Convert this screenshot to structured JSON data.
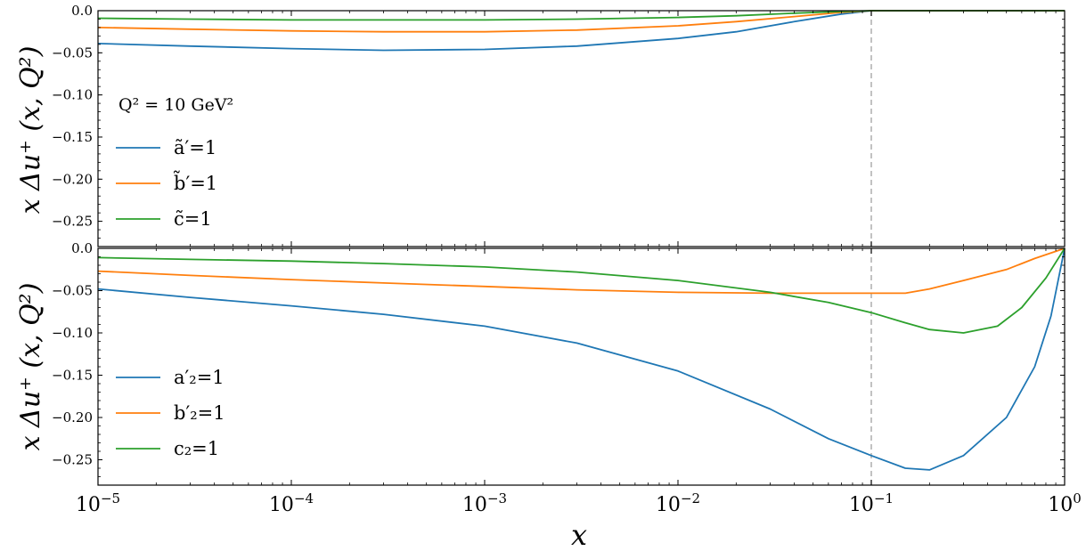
{
  "chart_data": [
    {
      "type": "line",
      "panel": "top",
      "annotation": "Q² = 10 GeV²",
      "ylabel": "x Δu⁺ (x, Q²)",
      "xscale": "log",
      "xlim": [
        1e-05,
        1
      ],
      "ylim": [
        -0.28,
        0.0
      ],
      "yticks": [
        "0.0",
        "−0.05",
        "−0.10",
        "−0.15",
        "−0.20",
        "−0.25"
      ],
      "ytick_values": [
        0.0,
        -0.05,
        -0.1,
        -0.15,
        -0.2,
        -0.25
      ],
      "vline_x": 0.1,
      "legend_position": "center-left",
      "series": [
        {
          "name": "ã′=1",
          "color": "#1f77b4",
          "x": [
            1e-05,
            3e-05,
            0.0001,
            0.0003,
            0.001,
            0.003,
            0.01,
            0.02,
            0.04,
            0.07,
            0.1,
            0.3,
            1.0
          ],
          "y": [
            -0.039,
            -0.042,
            -0.045,
            -0.047,
            -0.046,
            -0.042,
            -0.033,
            -0.025,
            -0.013,
            -0.004,
            0.0,
            0.0,
            0.0
          ]
        },
        {
          "name": "b̃′=1",
          "color": "#ff7f0e",
          "x": [
            1e-05,
            3e-05,
            0.0001,
            0.0003,
            0.001,
            0.003,
            0.01,
            0.02,
            0.04,
            0.07,
            0.1,
            0.3,
            1.0
          ],
          "y": [
            -0.02,
            -0.022,
            -0.024,
            -0.025,
            -0.025,
            -0.023,
            -0.018,
            -0.013,
            -0.007,
            -0.002,
            0.0,
            0.0,
            0.0
          ]
        },
        {
          "name": "c̃=1",
          "color": "#2ca02c",
          "x": [
            1e-05,
            3e-05,
            0.0001,
            0.0003,
            0.001,
            0.003,
            0.01,
            0.02,
            0.04,
            0.07,
            0.1,
            0.3,
            1.0
          ],
          "y": [
            -0.009,
            -0.01,
            -0.011,
            -0.011,
            -0.011,
            -0.01,
            -0.008,
            -0.006,
            -0.003,
            -0.001,
            0.0,
            0.0,
            0.0
          ]
        }
      ]
    },
    {
      "type": "line",
      "panel": "bottom",
      "ylabel": "x Δu⁺ (x, Q²)",
      "xlabel": "x",
      "xscale": "log",
      "xlim": [
        1e-05,
        1
      ],
      "ylim": [
        -0.28,
        0.0
      ],
      "xticks": [
        "10",
        "10",
        "10",
        "10",
        "10",
        "10"
      ],
      "xtick_exponents": [
        "−5",
        "−4",
        "−3",
        "−2",
        "−1",
        "0"
      ],
      "xtick_values": [
        1e-05,
        0.0001,
        0.001,
        0.01,
        0.1,
        1.0
      ],
      "yticks": [
        "0.0",
        "−0.05",
        "−0.10",
        "−0.15",
        "−0.20",
        "−0.25"
      ],
      "ytick_values": [
        0.0,
        -0.05,
        -0.1,
        -0.15,
        -0.2,
        -0.25
      ],
      "vline_x": 0.1,
      "legend_position": "lower-left",
      "series": [
        {
          "name": "a′₂=1",
          "color": "#1f77b4",
          "x": [
            1e-05,
            3e-05,
            0.0001,
            0.0003,
            0.001,
            0.003,
            0.01,
            0.03,
            0.06,
            0.1,
            0.15,
            0.2,
            0.3,
            0.5,
            0.7,
            0.85,
            1.0
          ],
          "y": [
            -0.048,
            -0.058,
            -0.068,
            -0.078,
            -0.092,
            -0.112,
            -0.145,
            -0.19,
            -0.225,
            -0.245,
            -0.26,
            -0.262,
            -0.245,
            -0.2,
            -0.14,
            -0.08,
            0.0
          ]
        },
        {
          "name": "b′₂=1",
          "color": "#ff7f0e",
          "x": [
            1e-05,
            3e-05,
            0.0001,
            0.0003,
            0.001,
            0.003,
            0.01,
            0.03,
            0.06,
            0.1,
            0.15,
            0.2,
            0.3,
            0.5,
            0.7,
            1.0
          ],
          "y": [
            -0.027,
            -0.032,
            -0.037,
            -0.041,
            -0.045,
            -0.049,
            -0.052,
            -0.053,
            -0.053,
            -0.053,
            -0.053,
            -0.048,
            -0.038,
            -0.025,
            -0.012,
            0.0
          ]
        },
        {
          "name": "c₂=1",
          "color": "#2ca02c",
          "x": [
            1e-05,
            3e-05,
            0.0001,
            0.0003,
            0.001,
            0.003,
            0.01,
            0.03,
            0.06,
            0.1,
            0.15,
            0.2,
            0.3,
            0.45,
            0.6,
            0.8,
            1.0
          ],
          "y": [
            -0.011,
            -0.013,
            -0.015,
            -0.018,
            -0.022,
            -0.028,
            -0.038,
            -0.052,
            -0.064,
            -0.076,
            -0.088,
            -0.096,
            -0.1,
            -0.092,
            -0.07,
            -0.035,
            0.0
          ]
        }
      ]
    }
  ]
}
